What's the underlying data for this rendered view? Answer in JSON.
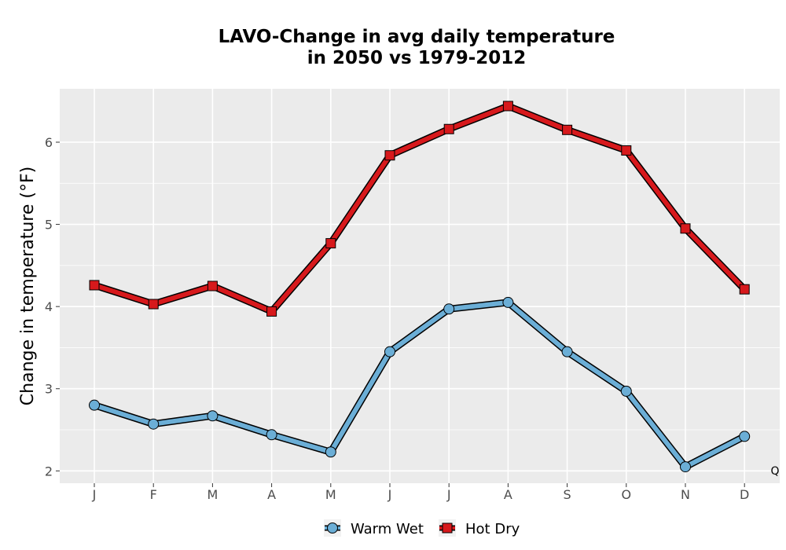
{
  "chart_data": {
    "type": "line",
    "title_line1": "LAVO-Change in avg daily temperature",
    "title_line2": "in 2050 vs 1979-2012",
    "xlabel": "",
    "ylabel": "Change in temperature (°F)",
    "categories": [
      "J",
      "F",
      "M",
      "A",
      "M",
      "J",
      "J",
      "A",
      "S",
      "O",
      "N",
      "D"
    ],
    "ylim": [
      1.85,
      6.65
    ],
    "yticks": [
      2,
      3,
      4,
      5,
      6
    ],
    "grid": true,
    "legend_position": "bottom",
    "series": [
      {
        "name": "Warm Wet",
        "marker": "circle",
        "color": "#6baed6",
        "values": [
          2.8,
          2.57,
          2.67,
          2.44,
          2.23,
          3.45,
          3.97,
          4.05,
          3.45,
          2.97,
          2.05,
          2.42
        ]
      },
      {
        "name": "Hot Dry",
        "marker": "square",
        "color": "#d7191c",
        "values": [
          4.26,
          4.03,
          4.25,
          3.94,
          4.77,
          5.84,
          6.16,
          6.44,
          6.15,
          5.9,
          4.95,
          4.21
        ]
      }
    ],
    "corner_mark": "Q"
  }
}
